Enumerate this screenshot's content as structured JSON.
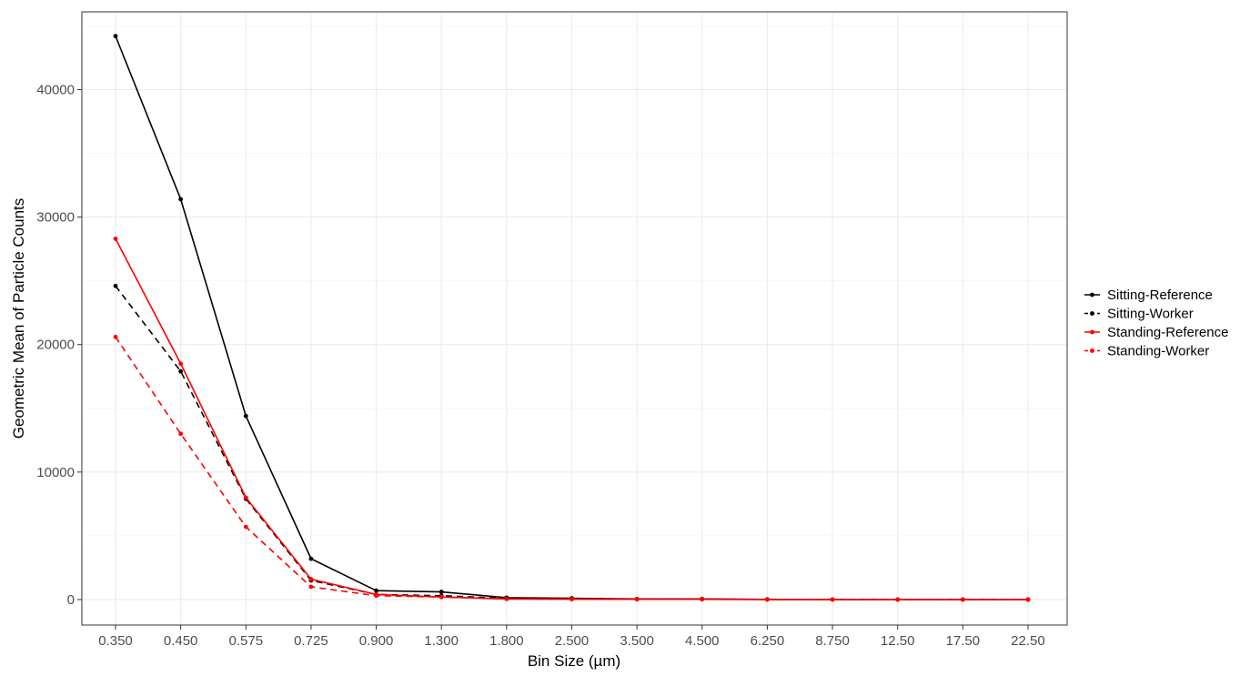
{
  "chart_data": {
    "type": "line",
    "title": "",
    "xlabel": "Bin Size (µm)",
    "ylabel": "Geometric Mean of Particle Counts",
    "categories": [
      "0.350",
      "0.450",
      "0.575",
      "0.725",
      "0.900",
      "1.300",
      "1.800",
      "2.500",
      "3.500",
      "4.500",
      "6.250",
      "8.750",
      "12.50",
      "17.50",
      "22.50"
    ],
    "ylim": [
      -2000,
      46100
    ],
    "yticks": [
      0,
      10000,
      20000,
      30000,
      40000
    ],
    "grid": true,
    "legend_position": "right",
    "series": [
      {
        "name": "Sitting-Reference",
        "color": "#000000",
        "linestyle": "solid",
        "values": [
          44200,
          31400,
          14400,
          3200,
          700,
          600,
          150,
          100,
          50,
          50,
          10,
          5,
          5,
          2,
          2
        ]
      },
      {
        "name": "Sitting-Worker",
        "color": "#000000",
        "linestyle": "dashed",
        "values": [
          24600,
          17900,
          7900,
          1500,
          400,
          300,
          100,
          50,
          30,
          30,
          10,
          5,
          5,
          2,
          2
        ]
      },
      {
        "name": "Standing-Reference",
        "color": "#ff0000",
        "linestyle": "solid",
        "values": [
          28300,
          18500,
          8000,
          1600,
          400,
          200,
          50,
          30,
          20,
          20,
          5,
          5,
          2,
          2,
          2
        ]
      },
      {
        "name": "Standing-Worker",
        "color": "#ff0000",
        "linestyle": "dashed",
        "values": [
          20600,
          13000,
          5700,
          1000,
          300,
          200,
          50,
          30,
          20,
          20,
          5,
          5,
          2,
          2,
          2
        ]
      }
    ]
  }
}
